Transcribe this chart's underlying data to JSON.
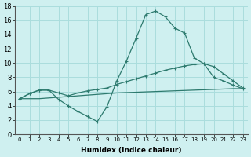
{
  "xlabel": "Humidex (Indice chaleur)",
  "ylabel": "",
  "background_color": "#cff0f0",
  "grid_color": "#aadddd",
  "line_color": "#2d7a6e",
  "xlim": [
    -0.5,
    23.5
  ],
  "ylim": [
    0,
    18
  ],
  "xticks": [
    0,
    1,
    2,
    3,
    4,
    5,
    6,
    7,
    8,
    9,
    10,
    11,
    12,
    13,
    14,
    15,
    16,
    17,
    18,
    19,
    20,
    21,
    22,
    23
  ],
  "yticks": [
    0,
    2,
    4,
    6,
    8,
    10,
    12,
    14,
    16,
    18
  ],
  "x": [
    0,
    1,
    2,
    3,
    4,
    5,
    6,
    7,
    8,
    9,
    10,
    11,
    12,
    13,
    14,
    15,
    16,
    17,
    18,
    19,
    20,
    21,
    22,
    23
  ],
  "line_flat": [
    5.0,
    5.0,
    5.0,
    5.1,
    5.2,
    5.3,
    5.4,
    5.5,
    5.6,
    5.7,
    5.8,
    5.85,
    5.9,
    5.95,
    6.0,
    6.05,
    6.1,
    6.15,
    6.2,
    6.25,
    6.3,
    6.35,
    6.4,
    6.4
  ],
  "line_mid": [
    5.0,
    5.7,
    6.2,
    6.2,
    5.8,
    5.4,
    5.8,
    6.1,
    6.3,
    6.5,
    7.0,
    7.4,
    7.8,
    8.2,
    8.6,
    9.0,
    9.3,
    9.6,
    9.8,
    9.9,
    9.5,
    8.5,
    7.5,
    6.5
  ],
  "line_main": [
    5.0,
    5.7,
    6.2,
    6.2,
    4.9,
    4.0,
    3.2,
    2.5,
    1.8,
    3.9,
    7.5,
    10.3,
    13.5,
    16.8,
    17.3,
    16.5,
    14.9,
    14.2,
    10.7,
    9.9,
    8.0,
    7.5,
    6.9,
    6.4
  ]
}
